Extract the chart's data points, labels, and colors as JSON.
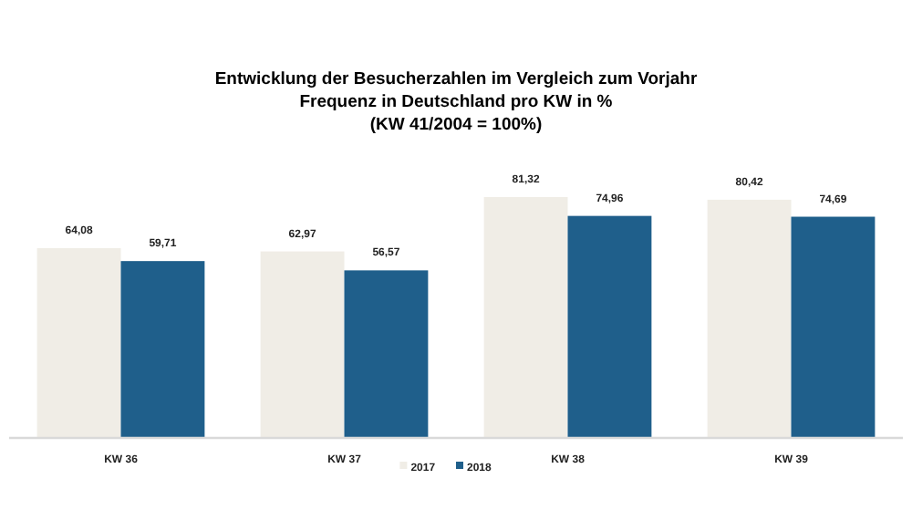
{
  "chart_data": {
    "type": "bar",
    "title": "Entwicklung der Besucherzahlen im Vergleich zum Vorjahr\nFrequenz in Deutschland pro KW in %\n(KW 41/2004 = 100%)",
    "categories": [
      "KW 36",
      "KW 37",
      "KW 38",
      "KW 39"
    ],
    "series": [
      {
        "name": "2017",
        "color": "#f0ede6",
        "values": [
          64.08,
          62.97,
          81.32,
          80.42
        ],
        "value_labels": [
          "64,08",
          "62,97",
          "81,32",
          "80,42"
        ]
      },
      {
        "name": "2018",
        "color": "#1f5f8b",
        "values": [
          59.71,
          56.57,
          74.96,
          74.69
        ],
        "value_labels": [
          "59,71",
          "56,57",
          "74,96",
          "74,69"
        ]
      }
    ],
    "legend": "bottom",
    "grid": false
  }
}
